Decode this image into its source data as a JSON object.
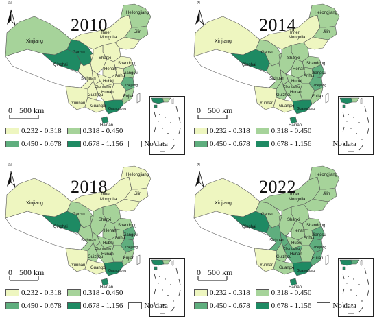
{
  "colors": {
    "class1": "#eef6c0",
    "class2": "#a6d39a",
    "class3": "#5fae7e",
    "class4": "#1e8a63",
    "nodata": "#ffffff",
    "border": "#555555"
  },
  "legend": {
    "class1": "0.232 - 0.318",
    "class2": "0.318 - 0.450",
    "class3": "0.450 - 0.678",
    "class4": "0.678 - 1.156",
    "nodata": "No data"
  },
  "scale_bar": {
    "zero": "0",
    "label": "500 km"
  },
  "north_arrow": {
    "letter": "N",
    "icon": "north-arrow-icon"
  },
  "provinces": {
    "xinjiang": "Xinjiang",
    "gansu": "Gansu",
    "qinghai": "Qinghai",
    "inner_mongolia_1": "Inner",
    "inner_mongolia_2": "Mongolia",
    "heilongjiang": "Heilongjiang",
    "jilin": "Jilin",
    "shanxi": "Shanxi",
    "henan": "Henan",
    "sichuan": "Sichuan",
    "hubei": "Hubei",
    "shandong": "Shandong",
    "guizhou": "Guizhou",
    "hunan": "Hunan",
    "yunnan": "Yunnan",
    "guangxi": "Guangxi",
    "fujian": "Fujian",
    "anhui": "Anhui",
    "jiangsu": "Jiangsu",
    "hainan": "Hainan",
    "chongqing": "Chongqing",
    "zhejiang": "Zhejiang",
    "guangdong": "Guangdong"
  },
  "panels": [
    {
      "year": "2010",
      "classes": {
        "xinjiang": 2,
        "tibet": 0,
        "qinghai": 4,
        "gansu": 4,
        "inner_mongolia": 1,
        "heilongjiang": 2,
        "jilin": 2,
        "liaoning": 1,
        "north_china": 1,
        "shandong": 1,
        "henan": 1,
        "shaanxi": 1,
        "sichuan": 1,
        "chongqing": 1,
        "hubei": 1,
        "anhui": 1,
        "jiangsu": 2,
        "zhejiang": 3,
        "fujian": 2,
        "jiangxi": 1,
        "hunan": 1,
        "guizhou": 1,
        "yunnan": 1,
        "guangxi": 1,
        "guangdong": 4,
        "hainan": 4,
        "ningxia": 1
      }
    },
    {
      "year": "2014",
      "classes": {
        "xinjiang": 1,
        "tibet": 0,
        "qinghai": 4,
        "gansu": 2,
        "inner_mongolia": 1,
        "heilongjiang": 2,
        "jilin": 2,
        "liaoning": 1,
        "north_china": 2,
        "shandong": 2,
        "henan": 2,
        "shaanxi": 2,
        "sichuan": 2,
        "chongqing": 2,
        "hubei": 2,
        "anhui": 2,
        "jiangsu": 3,
        "zhejiang": 3,
        "fujian": 2,
        "jiangxi": 2,
        "hunan": 2,
        "guizhou": 2,
        "yunnan": 1,
        "guangxi": 1,
        "guangdong": 4,
        "hainan": 4,
        "ningxia": 2
      }
    },
    {
      "year": "2018",
      "classes": {
        "xinjiang": 1,
        "tibet": 0,
        "qinghai": 4,
        "gansu": 2,
        "inner_mongolia": 1,
        "heilongjiang": 1,
        "jilin": 1,
        "liaoning": 1,
        "north_china": 2,
        "shandong": 2,
        "henan": 2,
        "shaanxi": 2,
        "sichuan": 2,
        "chongqing": 2,
        "hubei": 2,
        "anhui": 2,
        "jiangsu": 3,
        "zhejiang": 3,
        "fujian": 2,
        "jiangxi": 2,
        "hunan": 2,
        "guizhou": 2,
        "yunnan": 1,
        "guangxi": 1,
        "guangdong": 4,
        "hainan": 4,
        "ningxia": 2
      }
    },
    {
      "year": "2022",
      "classes": {
        "xinjiang": 1,
        "tibet": 0,
        "qinghai": 4,
        "gansu": 2,
        "inner_mongolia": 2,
        "heilongjiang": 2,
        "jilin": 2,
        "liaoning": 2,
        "north_china": 2,
        "shandong": 2,
        "henan": 2,
        "shaanxi": 2,
        "sichuan": 3,
        "chongqing": 3,
        "hubei": 2,
        "anhui": 2,
        "jiangsu": 3,
        "zhejiang": 3,
        "fujian": 3,
        "jiangxi": 2,
        "hunan": 3,
        "guizhou": 2,
        "yunnan": 1,
        "guangxi": 2,
        "guangdong": 4,
        "hainan": 4,
        "ningxia": 2
      }
    }
  ]
}
